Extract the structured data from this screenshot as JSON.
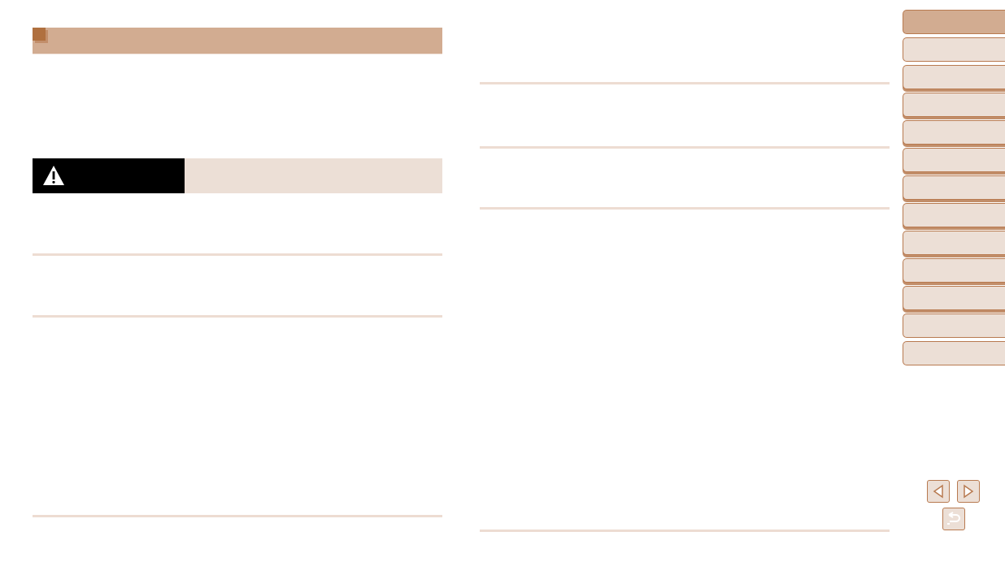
{
  "colors": {
    "title_bar": "#d2ac91",
    "accent": "#b0703f",
    "warning_band": "#ecdfd6",
    "warning_label_bg": "#000000",
    "divider": "#eddcd2"
  },
  "icons": {
    "warning": "warning-triangle-icon",
    "previous": "previous-page-icon",
    "next": "next-page-icon",
    "back": "return-icon"
  },
  "sidebar": {
    "tab_count": 13,
    "active_tab": 1
  }
}
